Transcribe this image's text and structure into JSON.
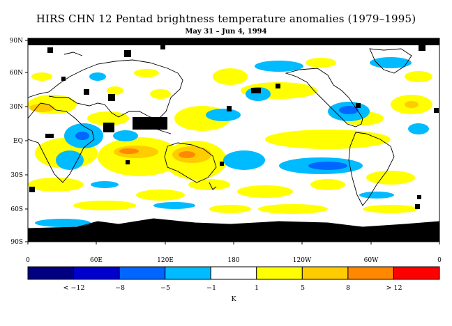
{
  "title": "HIRS CHN 12 Pentad brightness temperature anomalies (1979–1995)",
  "subtitle": "May 31 – Jun 4, 1994",
  "lat_labels": [
    "90N",
    "60N",
    "30N",
    "EQ",
    "30S",
    "60S",
    "90S"
  ],
  "lon_labels": [
    "0",
    "60E",
    "120E",
    "180",
    "120W",
    "60W",
    "0"
  ],
  "colorbar": {
    "colors": [
      "#000080",
      "#0000cc",
      "#0066ff",
      "#00bbff",
      "#ffffff",
      "#ffff00",
      "#ffcc00",
      "#ff8800",
      "#ff0000"
    ],
    "tick_labels": [
      "< −12",
      "−8",
      "−5",
      "−1",
      "1",
      "5",
      "8",
      "> 12"
    ],
    "unit": "K"
  }
}
